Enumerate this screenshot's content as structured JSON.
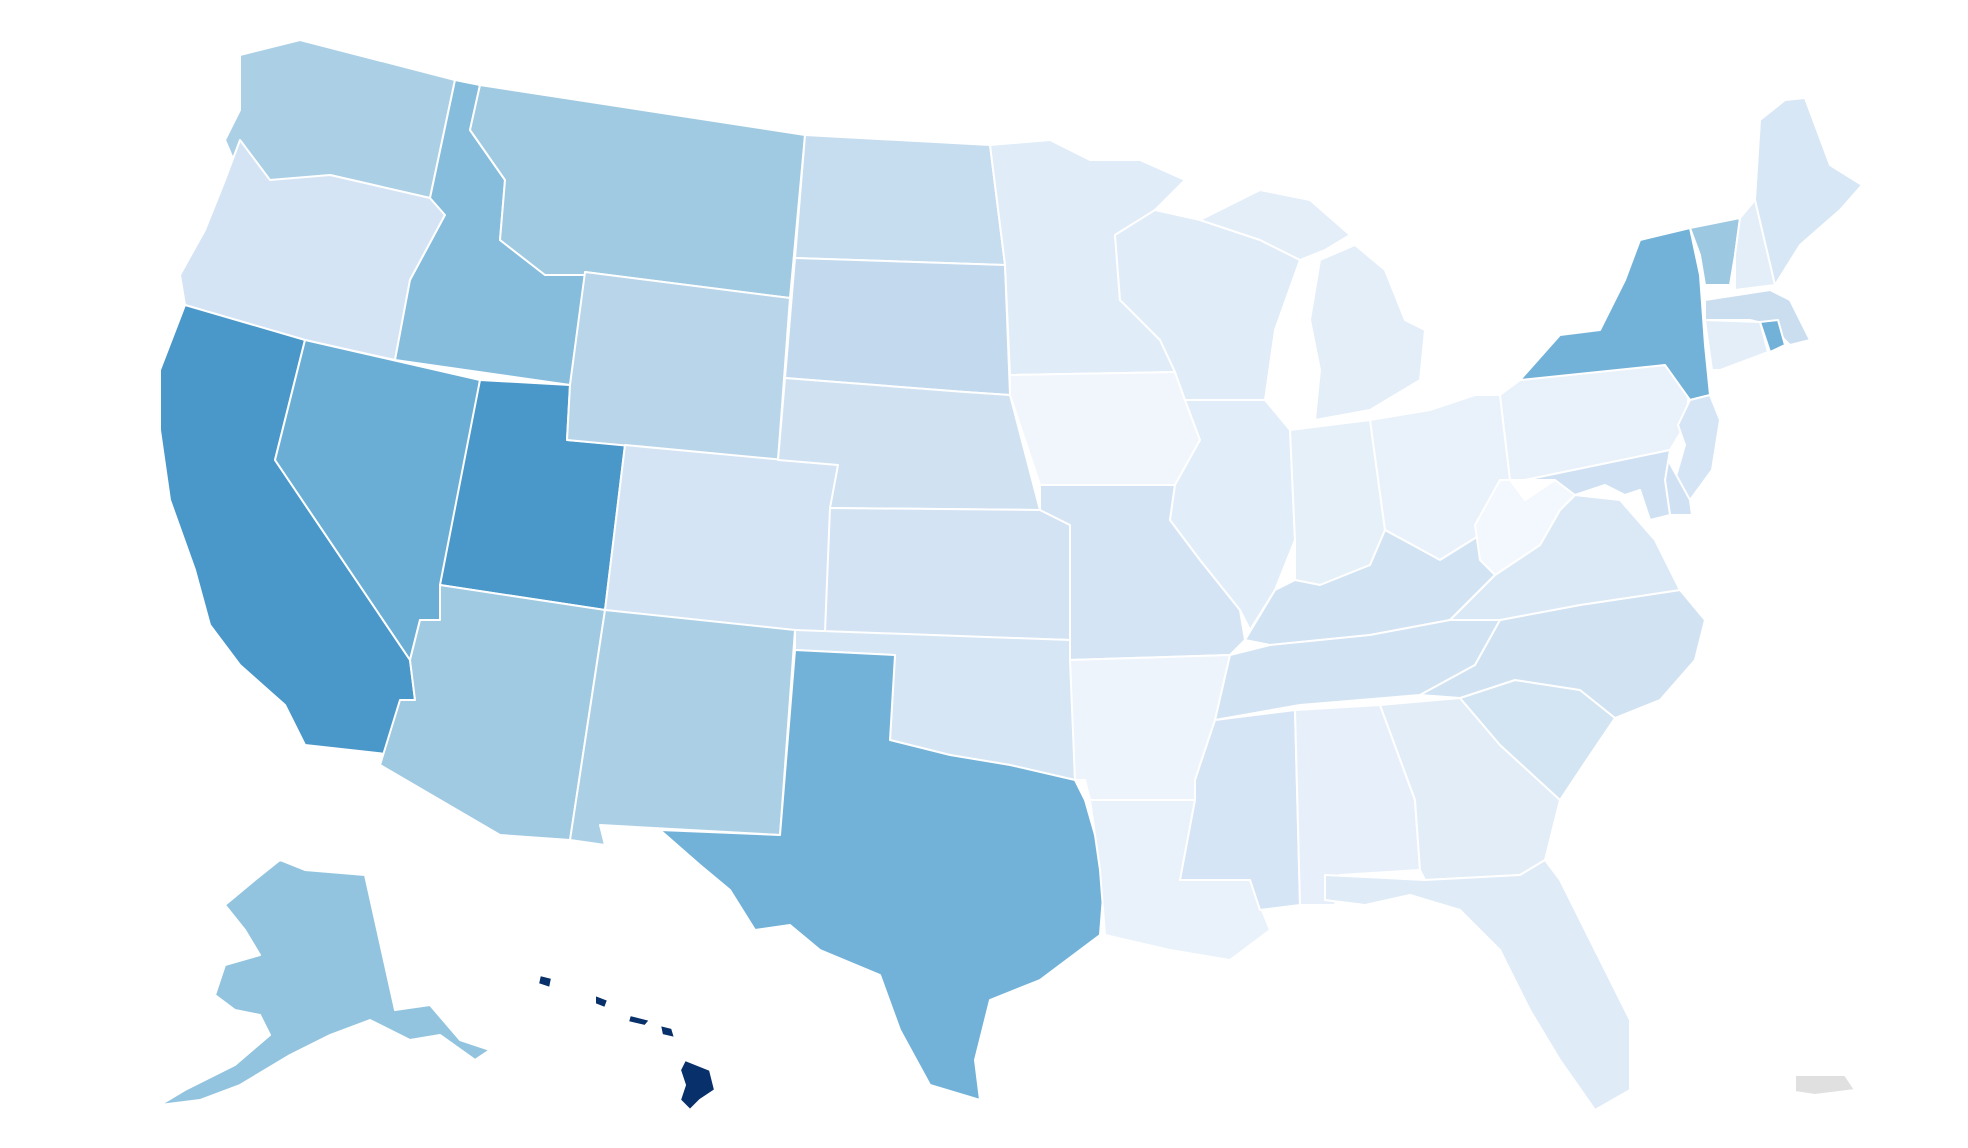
{
  "map": {
    "type": "choropleth",
    "region": "United States",
    "color_scale": {
      "low": "#f4f8fd",
      "high": "#08306b",
      "no_data": "#e0e0e0"
    },
    "states": [
      {
        "code": "WA",
        "level": 0.32,
        "color": "#abd0e6"
      },
      {
        "code": "OR",
        "level": 0.12,
        "color": "#d4e4f4"
      },
      {
        "code": "CA",
        "level": 0.72,
        "color": "#4a97c9"
      },
      {
        "code": "ID",
        "level": 0.45,
        "color": "#86bcdc"
      },
      {
        "code": "NV",
        "level": 0.6,
        "color": "#6aaed6"
      },
      {
        "code": "UT",
        "level": 0.72,
        "color": "#4a97c9"
      },
      {
        "code": "AZ",
        "level": 0.36,
        "color": "#a0c9e2"
      },
      {
        "code": "MT",
        "level": 0.37,
        "color": "#9fcae1"
      },
      {
        "code": "WY",
        "level": 0.28,
        "color": "#b8d5ea"
      },
      {
        "code": "CO",
        "level": 0.12,
        "color": "#d4e4f4"
      },
      {
        "code": "NM",
        "level": 0.32,
        "color": "#abd0e6"
      },
      {
        "code": "ND",
        "level": 0.22,
        "color": "#c6dcef"
      },
      {
        "code": "SD",
        "level": 0.24,
        "color": "#c2d9ee"
      },
      {
        "code": "NE",
        "level": 0.16,
        "color": "#d0e2f2"
      },
      {
        "code": "KS",
        "level": 0.14,
        "color": "#d3e3f3"
      },
      {
        "code": "OK",
        "level": 0.13,
        "color": "#d6e6f4"
      },
      {
        "code": "TX",
        "level": 0.56,
        "color": "#73b2d8"
      },
      {
        "code": "MN",
        "level": 0.08,
        "color": "#e0ecf8"
      },
      {
        "code": "IA",
        "level": 0.02,
        "color": "#f1f6fd"
      },
      {
        "code": "MO",
        "level": 0.13,
        "color": "#d4e4f4"
      },
      {
        "code": "AR",
        "level": 0.03,
        "color": "#edf4fc"
      },
      {
        "code": "LA",
        "level": 0.04,
        "color": "#e9f2fb"
      },
      {
        "code": "WI",
        "level": 0.08,
        "color": "#e0ecf8"
      },
      {
        "code": "IL",
        "level": 0.08,
        "color": "#e1edf8"
      },
      {
        "code": "MI",
        "level": 0.06,
        "color": "#e3eef9"
      },
      {
        "code": "IN",
        "level": 0.05,
        "color": "#e6f0f9"
      },
      {
        "code": "OH",
        "level": 0.04,
        "color": "#e9f2fb"
      },
      {
        "code": "KY",
        "level": 0.14,
        "color": "#d2e3f3"
      },
      {
        "code": "TN",
        "level": 0.14,
        "color": "#d2e3f3"
      },
      {
        "code": "MS",
        "level": 0.12,
        "color": "#d5e5f5"
      },
      {
        "code": "AL",
        "level": 0.05,
        "color": "#e7f0fa"
      },
      {
        "code": "GA",
        "level": 0.07,
        "color": "#e2edf8"
      },
      {
        "code": "FL",
        "level": 0.08,
        "color": "#dfebf7"
      },
      {
        "code": "SC",
        "level": 0.14,
        "color": "#d3e4f3"
      },
      {
        "code": "NC",
        "level": 0.15,
        "color": "#d1e2f2"
      },
      {
        "code": "VA",
        "level": 0.1,
        "color": "#dbe9f6"
      },
      {
        "code": "WV",
        "level": 0.01,
        "color": "#f3f8fe"
      },
      {
        "code": "PA",
        "level": 0.04,
        "color": "#e9f2fb"
      },
      {
        "code": "NY",
        "level": 0.56,
        "color": "#73b2d8"
      },
      {
        "code": "VT",
        "level": 0.38,
        "color": "#9dc8e1"
      },
      {
        "code": "NH",
        "level": 0.06,
        "color": "#e3eef9"
      },
      {
        "code": "ME",
        "level": 0.11,
        "color": "#d8e7f5"
      },
      {
        "code": "MA",
        "level": 0.18,
        "color": "#cadef0"
      },
      {
        "code": "RI",
        "level": 0.56,
        "color": "#73b2d8"
      },
      {
        "code": "CT",
        "level": 0.06,
        "color": "#e3eef9"
      },
      {
        "code": "NJ",
        "level": 0.12,
        "color": "#d5e5f5"
      },
      {
        "code": "DE",
        "level": 0.16,
        "color": "#cfe1f2"
      },
      {
        "code": "MD",
        "level": 0.16,
        "color": "#cfe1f2"
      },
      {
        "code": "AK",
        "level": 0.4,
        "color": "#93c4df"
      },
      {
        "code": "HI",
        "level": 1.0,
        "color": "#08306b"
      },
      {
        "code": "PR",
        "level": null,
        "color": "#e0e0e0"
      }
    ]
  }
}
